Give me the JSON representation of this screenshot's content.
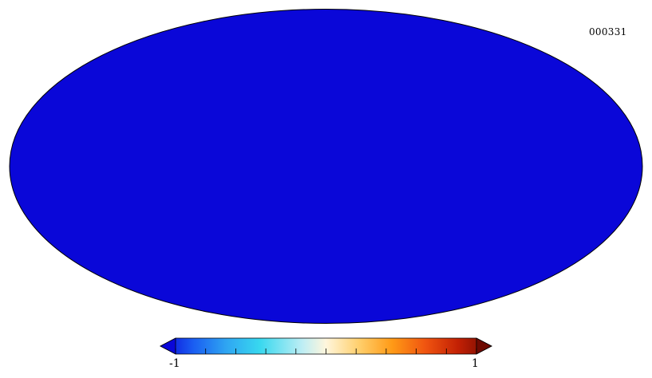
{
  "map": {
    "id_label": "000331",
    "projection": "mollweide",
    "colormap": [
      "#0a07d8",
      "#1a5ef2",
      "#2fa6f2",
      "#38d8ef",
      "#bfeef4",
      "#fff6dc",
      "#ffcf6c",
      "#ff9a16",
      "#f05410",
      "#c22004",
      "#6e0a02"
    ]
  },
  "colorbar": {
    "min_label": "-1",
    "max_label": "1"
  }
}
